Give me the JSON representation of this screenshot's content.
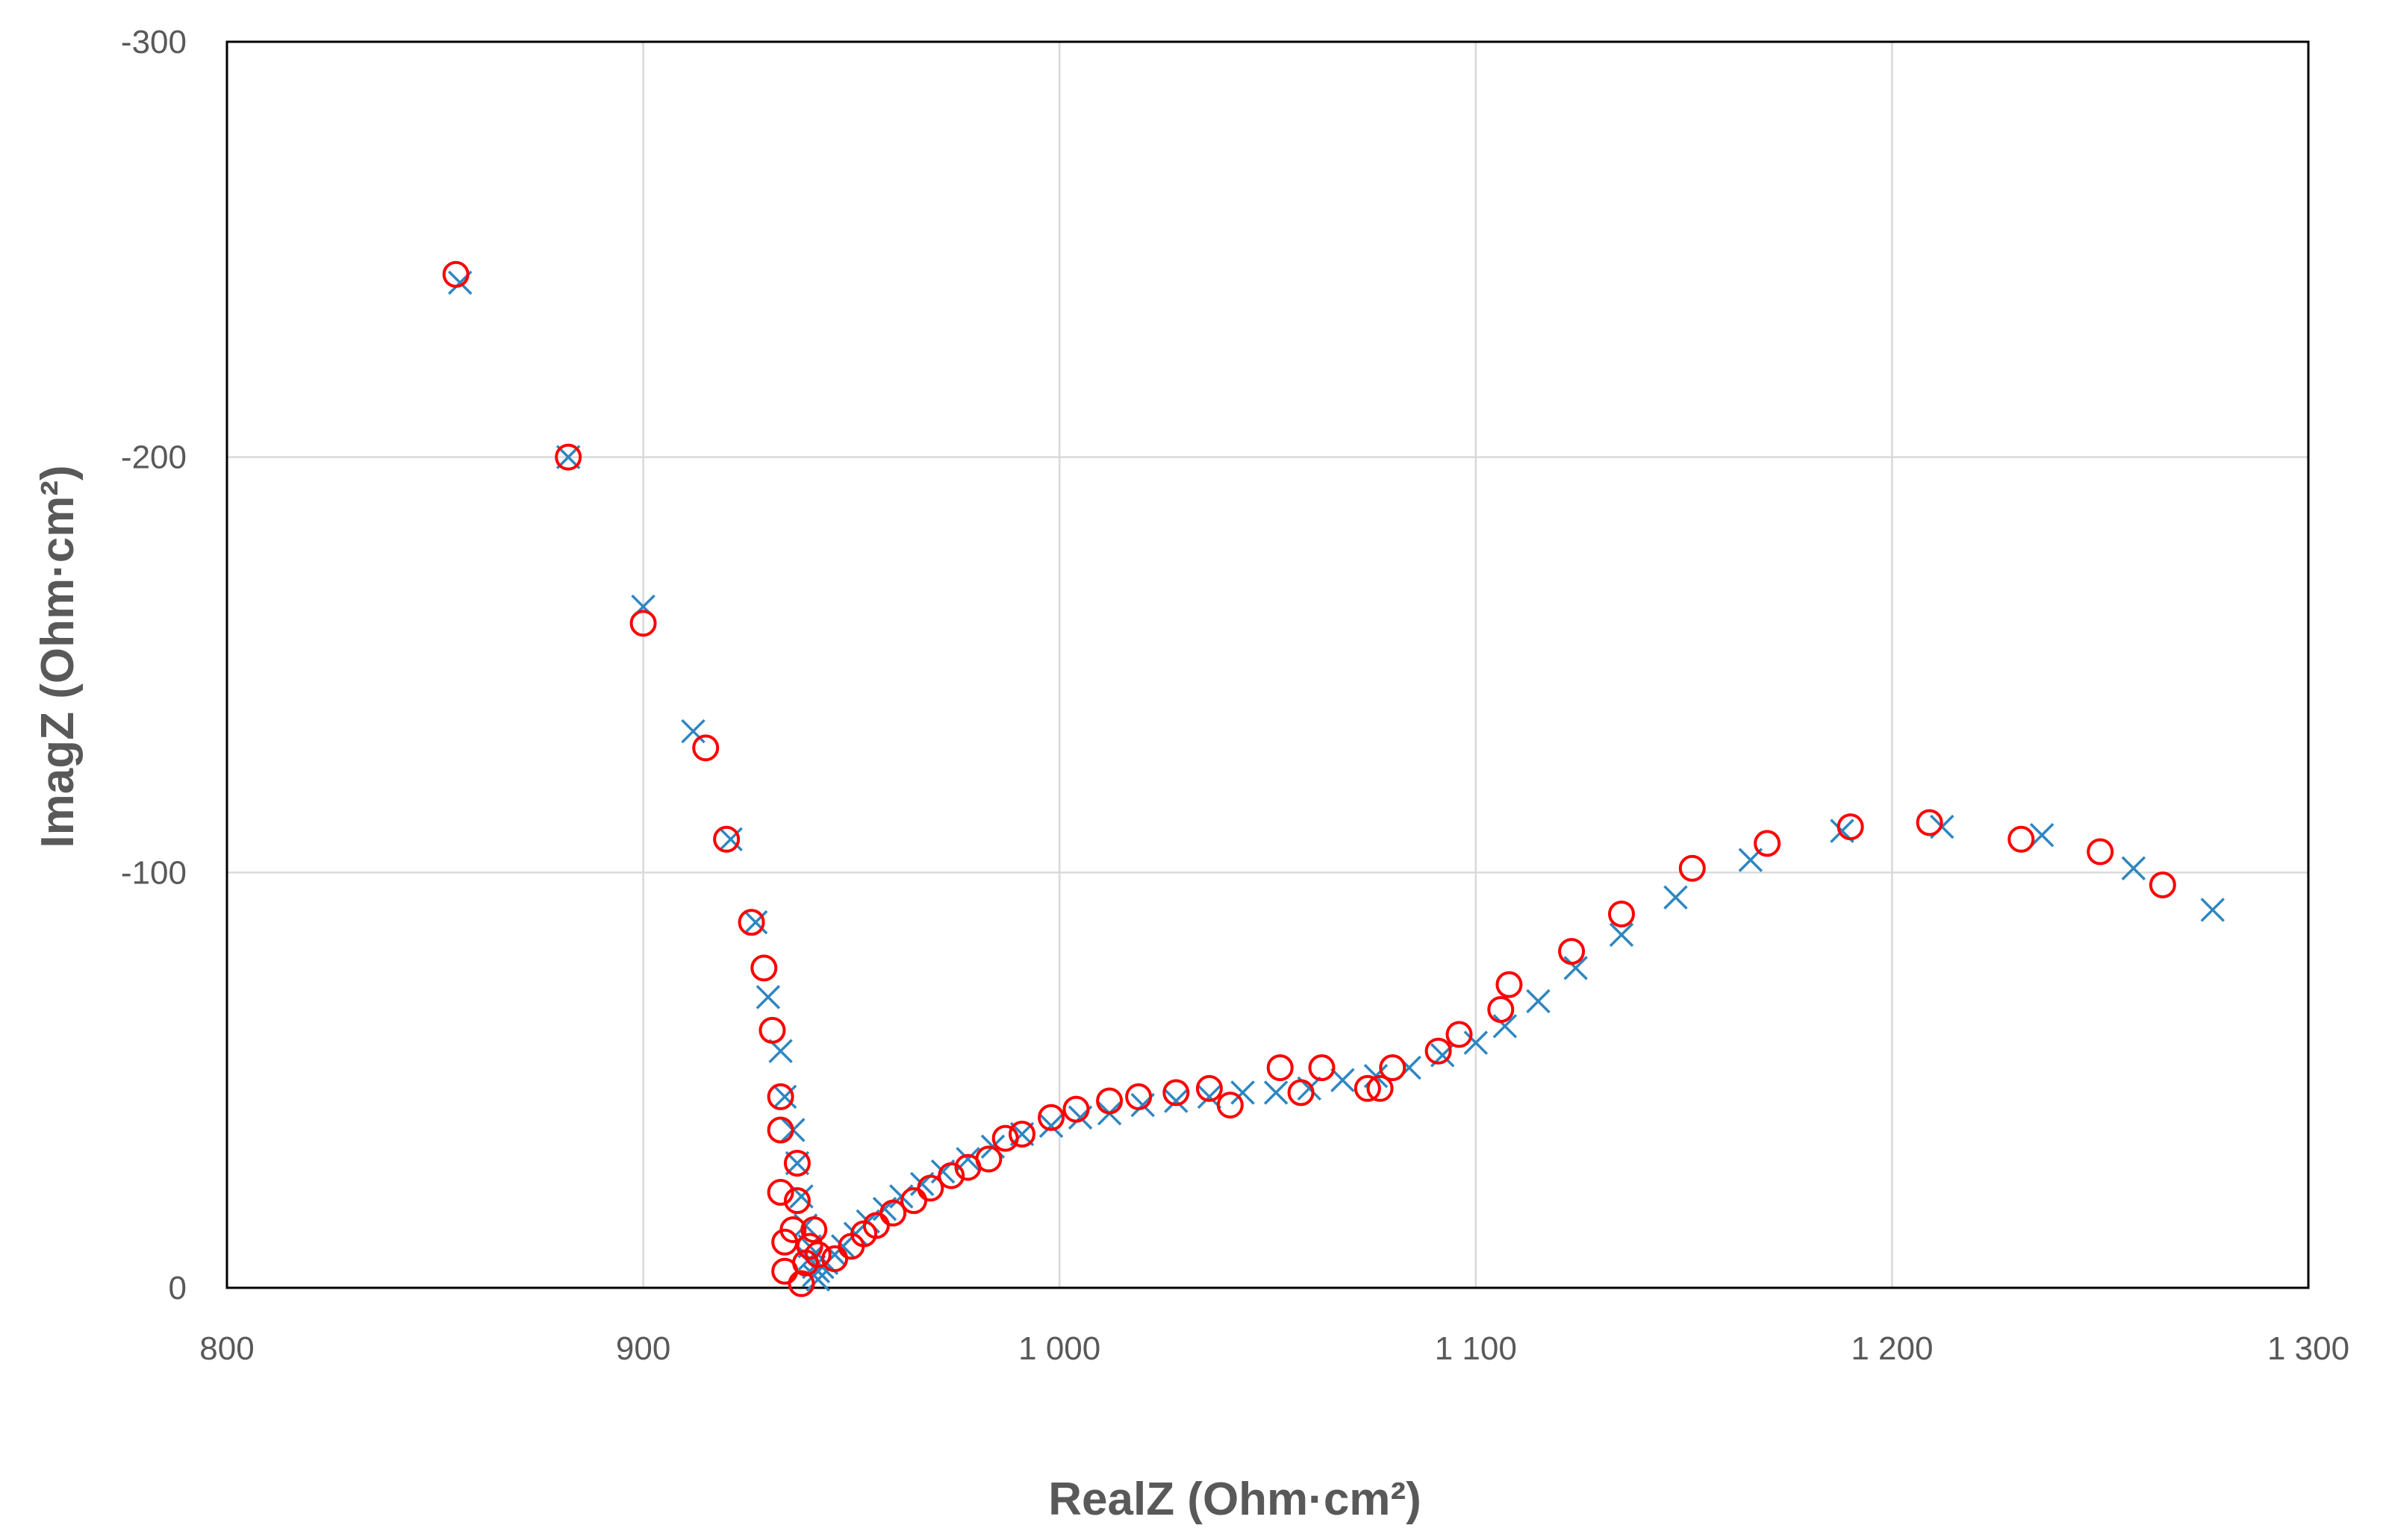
{
  "chart_data": {
    "type": "scatter",
    "xlabel": "RealZ (Ohm·cm²)",
    "ylabel": "ImagZ (Ohm·cm²)",
    "xlim": [
      800,
      1300
    ],
    "ylim": [
      0,
      -300
    ],
    "y_axis_inverted": true,
    "x_ticks": [
      800,
      900,
      1000,
      1100,
      1200,
      1300
    ],
    "x_tick_labels": [
      "800",
      "900",
      "1 000",
      "1 100",
      "1 200",
      "1 300"
    ],
    "y_ticks": [
      0,
      -100,
      -200,
      -300
    ],
    "y_tick_labels": [
      "0",
      "-100",
      "-200",
      "-300"
    ],
    "grid": true,
    "legend": "none",
    "series": [
      {
        "marker": "x",
        "color": "#2e86c1",
        "points": [
          [
            856,
            -242
          ],
          [
            882,
            -200
          ],
          [
            900,
            -164
          ],
          [
            912,
            -134
          ],
          [
            921,
            -108
          ],
          [
            927,
            -88
          ],
          [
            930,
            -70
          ],
          [
            933,
            -57
          ],
          [
            934,
            -46
          ],
          [
            936,
            -38
          ],
          [
            937,
            -30
          ],
          [
            938,
            -22
          ],
          [
            939,
            -15
          ],
          [
            940,
            -10
          ],
          [
            940,
            -7
          ],
          [
            941,
            -5
          ],
          [
            941,
            -3
          ],
          [
            942,
            -2
          ],
          [
            942,
            -4
          ],
          [
            943,
            -5
          ],
          [
            944,
            -6
          ],
          [
            946,
            -8
          ],
          [
            948,
            -10
          ],
          [
            951,
            -13
          ],
          [
            954,
            -16
          ],
          [
            958,
            -19
          ],
          [
            962,
            -22
          ],
          [
            967,
            -25
          ],
          [
            972,
            -28
          ],
          [
            978,
            -31
          ],
          [
            984,
            -34
          ],
          [
            991,
            -37
          ],
          [
            998,
            -39
          ],
          [
            1005,
            -41
          ],
          [
            1012,
            -42
          ],
          [
            1020,
            -44
          ],
          [
            1028,
            -45
          ],
          [
            1036,
            -46
          ],
          [
            1044,
            -47
          ],
          [
            1052,
            -47
          ],
          [
            1060,
            -48
          ],
          [
            1068,
            -50
          ],
          [
            1076,
            -51
          ],
          [
            1084,
            -53
          ],
          [
            1092,
            -56
          ],
          [
            1100,
            -59
          ],
          [
            1107,
            -63
          ],
          [
            1115,
            -69
          ],
          [
            1124,
            -77
          ],
          [
            1135,
            -85
          ],
          [
            1148,
            -94
          ],
          [
            1166,
            -103
          ],
          [
            1188,
            -110
          ],
          [
            1212,
            -111
          ],
          [
            1236,
            -109
          ],
          [
            1258,
            -101
          ],
          [
            1277,
            -91
          ]
        ]
      },
      {
        "marker": "circle",
        "color": "#ff0000",
        "points": [
          [
            855,
            -244
          ],
          [
            882,
            -200
          ],
          [
            900,
            -160
          ],
          [
            915,
            -130
          ],
          [
            920,
            -108
          ],
          [
            926,
            -88
          ],
          [
            929,
            -77
          ],
          [
            931,
            -62
          ],
          [
            933,
            -46
          ],
          [
            933,
            -38
          ],
          [
            933,
            -23
          ],
          [
            934,
            -11
          ],
          [
            934,
            -4
          ],
          [
            936,
            -14
          ],
          [
            937,
            -21
          ],
          [
            937,
            -30
          ],
          [
            938,
            -1
          ],
          [
            939,
            -6
          ],
          [
            940,
            -10
          ],
          [
            941,
            -14
          ],
          [
            942,
            -8
          ],
          [
            946,
            -7
          ],
          [
            950,
            -10
          ],
          [
            953,
            -13
          ],
          [
            956,
            -15
          ],
          [
            960,
            -18
          ],
          [
            965,
            -21
          ],
          [
            969,
            -24
          ],
          [
            974,
            -27
          ],
          [
            978,
            -29
          ],
          [
            983,
            -31
          ],
          [
            987,
            -36
          ],
          [
            991,
            -37
          ],
          [
            998,
            -41
          ],
          [
            1004,
            -43
          ],
          [
            1012,
            -45
          ],
          [
            1019,
            -46
          ],
          [
            1028,
            -47
          ],
          [
            1036,
            -48
          ],
          [
            1041,
            -44
          ],
          [
            1053,
            -53
          ],
          [
            1058,
            -47
          ],
          [
            1063,
            -53
          ],
          [
            1074,
            -48
          ],
          [
            1077,
            -48
          ],
          [
            1080,
            -53
          ],
          [
            1091,
            -57
          ],
          [
            1096,
            -61
          ],
          [
            1106,
            -67
          ],
          [
            1108,
            -73
          ],
          [
            1123,
            -81
          ],
          [
            1135,
            -90
          ],
          [
            1152,
            -101
          ],
          [
            1170,
            -107
          ],
          [
            1190,
            -111
          ],
          [
            1209,
            -112
          ],
          [
            1231,
            -108
          ],
          [
            1250,
            -105
          ],
          [
            1265,
            -97
          ]
        ]
      }
    ]
  }
}
